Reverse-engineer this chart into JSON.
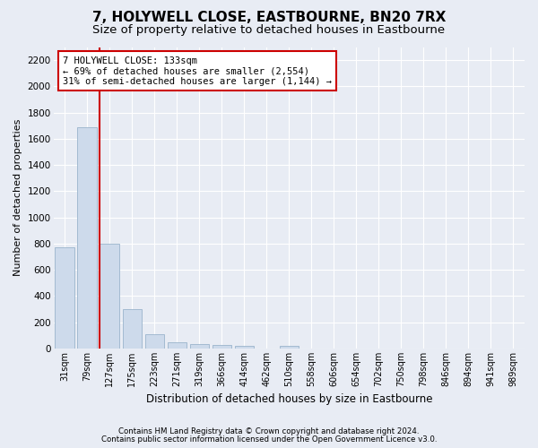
{
  "title": "7, HOLYWELL CLOSE, EASTBOURNE, BN20 7RX",
  "subtitle": "Size of property relative to detached houses in Eastbourne",
  "xlabel": "Distribution of detached houses by size in Eastbourne",
  "ylabel": "Number of detached properties",
  "footer_line1": "Contains HM Land Registry data © Crown copyright and database right 2024.",
  "footer_line2": "Contains public sector information licensed under the Open Government Licence v3.0.",
  "bin_labels": [
    "31sqm",
    "79sqm",
    "127sqm",
    "175sqm",
    "223sqm",
    "271sqm",
    "319sqm",
    "366sqm",
    "414sqm",
    "462sqm",
    "510sqm",
    "558sqm",
    "606sqm",
    "654sqm",
    "702sqm",
    "750sqm",
    "798sqm",
    "846sqm",
    "894sqm",
    "941sqm",
    "989sqm"
  ],
  "bar_values": [
    770,
    1690,
    800,
    300,
    110,
    45,
    32,
    25,
    22,
    0,
    20,
    0,
    0,
    0,
    0,
    0,
    0,
    0,
    0,
    0,
    0
  ],
  "bar_color": "#cddaeb",
  "bar_edgecolor": "#9ab4cc",
  "annotation_line1": "7 HOLYWELL CLOSE: 133sqm",
  "annotation_line2": "← 69% of detached houses are smaller (2,554)",
  "annotation_line3": "31% of semi-detached houses are larger (1,144) →",
  "annotation_box_color": "#cc0000",
  "annotation_box_fill": "#ffffff",
  "property_line_bin": 2,
  "ylim": [
    0,
    2300
  ],
  "yticks": [
    0,
    200,
    400,
    600,
    800,
    1000,
    1200,
    1400,
    1600,
    1800,
    2000,
    2200
  ],
  "background_color": "#e8ecf4",
  "plot_background_color": "#e8ecf4",
  "grid_color": "#ffffff",
  "title_fontsize": 11,
  "subtitle_fontsize": 9.5,
  "ylabel_fontsize": 8,
  "xlabel_fontsize": 8.5,
  "tick_fontsize": 7,
  "ytick_fontsize": 7.5,
  "footer_fontsize": 6.2,
  "annotation_fontsize": 7.5
}
